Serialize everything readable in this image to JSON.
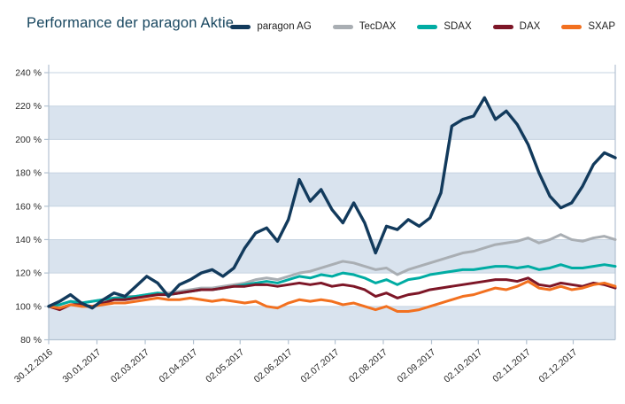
{
  "title": "Performance der paragon Aktie",
  "colors": {
    "background": "#ffffff",
    "title": "#17465f",
    "band_fill": "#d9e3ee",
    "gridline": "#c6d3e1",
    "axis": "#b3c2d1",
    "tick_label": "#2b2b2b"
  },
  "chart_data": {
    "type": "line",
    "title": "Performance der paragon Aktie",
    "ylabel": "",
    "xlabel": "",
    "y_axis": {
      "min": 80,
      "max": 240,
      "step": 20,
      "unit": "%",
      "tick_labels": [
        "80 %",
        "100 %",
        "120 %",
        "140 %",
        "160 %",
        "180 %",
        "200 %",
        "220 %",
        "240 %"
      ]
    },
    "x_axis": {
      "total_weeks": 52,
      "tick_labels": [
        "30.12.2016",
        "30.01.2017",
        "02.03.2017",
        "02.04.2017",
        "02.05.2017",
        "02.06.2017",
        "02.07.2017",
        "02.08.2017",
        "02.09.2017",
        "02.10.2017",
        "02.11.2017",
        "02.12.2017"
      ],
      "tick_positions_weeks": [
        0,
        4.43,
        8.86,
        13.29,
        17.57,
        22.0,
        26.29,
        30.71,
        35.14,
        39.43,
        43.86,
        48.14
      ]
    },
    "legend_position": "top-right",
    "plot_bands_alternate": true,
    "series": [
      {
        "name": "paragon AG",
        "color": "#123a5c",
        "line_width": 3.4,
        "values": [
          100,
          103,
          107,
          102,
          99,
          104,
          108,
          106,
          112,
          118,
          114,
          106,
          113,
          116,
          120,
          122,
          118,
          123,
          135,
          144,
          147,
          139,
          152,
          176,
          163,
          170,
          158,
          150,
          162,
          150,
          132,
          148,
          146,
          152,
          148,
          153,
          168,
          208,
          212,
          214,
          225,
          212,
          217,
          209,
          197,
          180,
          166,
          159,
          162,
          172,
          185,
          192,
          189
        ]
      },
      {
        "name": "TecDAX",
        "color": "#a9aeb3",
        "line_width": 3,
        "values": [
          100,
          101,
          103,
          102,
          103,
          104,
          105,
          106,
          106,
          107,
          108,
          108,
          109,
          110,
          111,
          111,
          112,
          113,
          114,
          116,
          117,
          116,
          118,
          120,
          121,
          123,
          125,
          127,
          126,
          124,
          122,
          123,
          119,
          122,
          124,
          126,
          128,
          130,
          132,
          133,
          135,
          137,
          138,
          139,
          141,
          138,
          140,
          143,
          140,
          139,
          141,
          142,
          140
        ]
      },
      {
        "name": "SDAX",
        "color": "#00aca3",
        "line_width": 3,
        "values": [
          100,
          101,
          103,
          102,
          103,
          104,
          105,
          105,
          106,
          107,
          108,
          107,
          108,
          109,
          110,
          110,
          111,
          112,
          113,
          114,
          115,
          114,
          116,
          118,
          117,
          119,
          118,
          120,
          119,
          117,
          114,
          116,
          113,
          116,
          117,
          119,
          120,
          121,
          122,
          122,
          123,
          124,
          124,
          123,
          124,
          122,
          123,
          125,
          123,
          123,
          124,
          125,
          124
        ]
      },
      {
        "name": "DAX",
        "color": "#7d1627",
        "line_width": 3,
        "values": [
          100,
          98,
          101,
          101,
          100,
          102,
          104,
          104,
          105,
          106,
          107,
          107,
          108,
          109,
          110,
          110,
          111,
          112,
          112,
          113,
          113,
          112,
          113,
          114,
          113,
          114,
          112,
          113,
          112,
          110,
          106,
          108,
          105,
          107,
          108,
          110,
          111,
          112,
          113,
          114,
          115,
          116,
          116,
          115,
          117,
          113,
          112,
          114,
          113,
          112,
          114,
          113,
          111
        ]
      },
      {
        "name": "SXAP",
        "color": "#f2701f",
        "line_width": 3,
        "values": [
          100,
          99,
          101,
          100,
          100,
          101,
          102,
          102,
          103,
          104,
          105,
          104,
          104,
          105,
          104,
          103,
          104,
          103,
          102,
          103,
          100,
          99,
          102,
          104,
          103,
          104,
          103,
          101,
          102,
          100,
          98,
          100,
          97,
          97,
          98,
          100,
          102,
          104,
          106,
          107,
          109,
          111,
          110,
          112,
          115,
          111,
          110,
          112,
          110,
          111,
          113,
          114,
          112
        ]
      }
    ]
  }
}
